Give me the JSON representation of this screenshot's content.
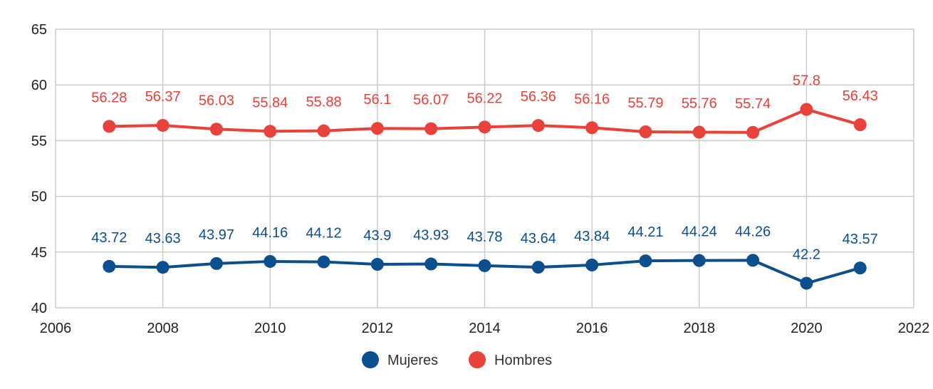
{
  "chart_data": {
    "type": "line",
    "title": "",
    "xlabel": "",
    "ylabel": "",
    "xlim": [
      2006,
      2022
    ],
    "ylim": [
      40,
      65
    ],
    "x_ticks": [
      "2006",
      "2008",
      "2010",
      "2012",
      "2014",
      "2016",
      "2018",
      "2020",
      "2022"
    ],
    "y_ticks": [
      "40",
      "45",
      "50",
      "55",
      "60",
      "65"
    ],
    "grid": true,
    "legend_position": "bottom",
    "x": [
      2007,
      2008,
      2009,
      2010,
      2011,
      2012,
      2013,
      2014,
      2015,
      2016,
      2017,
      2018,
      2019,
      2020,
      2021
    ],
    "series": [
      {
        "name": "Mujeres",
        "color": "#0b4f8f",
        "values": [
          43.72,
          43.63,
          43.97,
          44.16,
          44.12,
          43.9,
          43.93,
          43.78,
          43.64,
          43.84,
          44.21,
          44.24,
          44.26,
          42.2,
          43.57
        ],
        "labels": [
          "43.72",
          "43.63",
          "43.97",
          "44.16",
          "44.12",
          "43.9",
          "43.93",
          "43.78",
          "43.64",
          "43.84",
          "44.21",
          "44.24",
          "44.26",
          "42.2",
          "43.57"
        ]
      },
      {
        "name": "Hombres",
        "color": "#e8423a",
        "values": [
          56.28,
          56.37,
          56.03,
          55.84,
          55.88,
          56.1,
          56.07,
          56.22,
          56.36,
          56.16,
          55.79,
          55.76,
          55.74,
          57.8,
          56.43
        ],
        "labels": [
          "56.28",
          "56.37",
          "56.03",
          "55.84",
          "55.88",
          "56.1",
          "56.07",
          "56.22",
          "56.36",
          "56.16",
          "55.79",
          "55.76",
          "55.74",
          "57.8",
          "56.43"
        ]
      }
    ]
  }
}
